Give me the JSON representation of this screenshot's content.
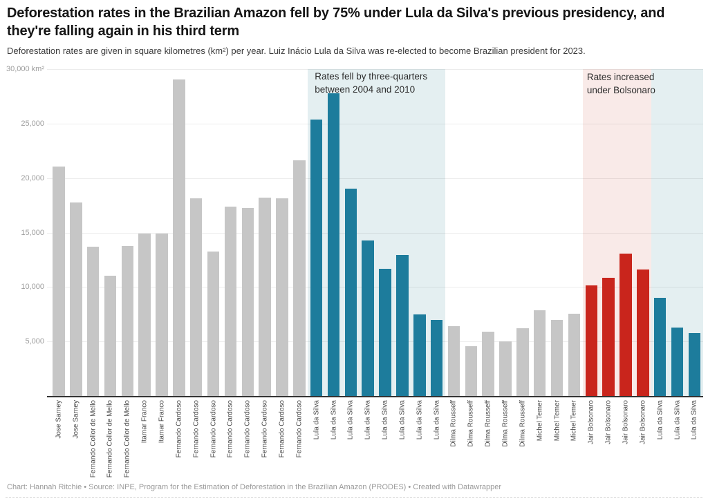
{
  "header": {
    "title": "Deforestation rates in the Brazilian Amazon fell by 75% under Lula da Silva's previous presidency, and they're falling again in his third term",
    "subtitle": "Deforestation rates are given in square kilometres (km²) per year. Luiz Inácio Lula da Silva was re-elected to become Brazilian president for 2023."
  },
  "footer": {
    "credit": "Chart: Hannah Ritchie • Source: INPE, Program for the Estimation of Deforestation in the Brazilian Amazon (PRODES) • Created with Datawrapper"
  },
  "chart_data": {
    "type": "bar",
    "title": "Deforestation rates in the Brazilian Amazon",
    "ylabel": "square kilometres (km²) per year",
    "ylim": [
      0,
      30000
    ],
    "grid": true,
    "y_axis": {
      "ticks": [
        {
          "value": 30000,
          "label": "30,000 km²"
        },
        {
          "value": 25000,
          "label": "25,000"
        },
        {
          "value": 20000,
          "label": "20,000"
        },
        {
          "value": 15000,
          "label": "15,000"
        },
        {
          "value": 10000,
          "label": "10,000"
        },
        {
          "value": 5000,
          "label": "5,000"
        }
      ]
    },
    "categories": [
      "Jose Sarney",
      "Jose Sarney",
      "Fernando Collor de Mello",
      "Fernando Collor de Mello",
      "Fernando Collor de Mello",
      "Itamar Franco",
      "Itamar Franco",
      "Fernando Cardoso",
      "Fernando Cardoso",
      "Fernando Cardoso",
      "Fernando Cardoso",
      "Fernando Cardoso",
      "Fernando Cardoso",
      "Fernando Cardoso",
      "Fernando Cardoso",
      "Lula da Silva",
      "Lula da Silva",
      "Lula da Silva",
      "Lula da Silva",
      "Lula da Silva",
      "Lula da Silva",
      "Lula da Silva",
      "Lula da Silva",
      "Dilma Rousseff",
      "Dilma Rousseff",
      "Dilma Rousseff",
      "Dilma Rousseff",
      "Dilma Rousseff",
      "Michel Temer",
      "Michel Temer",
      "Michel Temer",
      "Jair Bolsonaro",
      "Jair Bolsonaro",
      "Jair Bolsonaro",
      "Jair Bolsonaro",
      "Lula da Silva",
      "Lula da Silva",
      "Lula da Silva"
    ],
    "values": [
      21050,
      17770,
      13730,
      11030,
      13786,
      14896,
      14896,
      29059,
      18161,
      13227,
      17383,
      17259,
      18226,
      18165,
      21651,
      25396,
      27772,
      19014,
      14286,
      11651,
      12911,
      7464,
      7000,
      6418,
      4571,
      5891,
      5012,
      6207,
      7893,
      6947,
      7536,
      10129,
      10851,
      13038,
      11594,
      9001,
      6288,
      5796
    ],
    "bar_colors": [
      "gray",
      "gray",
      "gray",
      "gray",
      "gray",
      "gray",
      "gray",
      "gray",
      "gray",
      "gray",
      "gray",
      "gray",
      "gray",
      "gray",
      "gray",
      "blue",
      "blue",
      "blue",
      "blue",
      "blue",
      "blue",
      "blue",
      "blue",
      "gray",
      "gray",
      "gray",
      "gray",
      "gray",
      "gray",
      "gray",
      "gray",
      "red",
      "red",
      "red",
      "red",
      "blue",
      "blue",
      "blue"
    ],
    "colors": {
      "gray": "#c6c6c6",
      "blue": "#1d7c9c",
      "red": "#c9251c",
      "region_blue": "#e4eff1",
      "region_pink": "#f9eae8"
    },
    "regions": [
      {
        "name": "highlight-region-lula-previous",
        "start": 15,
        "end": 23,
        "color": "region_blue"
      },
      {
        "name": "highlight-region-bolsonaro",
        "start": 31,
        "end": 35,
        "color": "region_pink"
      },
      {
        "name": "highlight-region-lula-third-term",
        "start": 35,
        "end": 38,
        "color": "region_blue"
      }
    ],
    "annotations": [
      {
        "text": "Rates fell by three-quarters\nbetween 2004 and 2010",
        "region_index": 0
      },
      {
        "text": "Rates increased\nunder Bolsonaro",
        "region_index": 1
      }
    ],
    "legend_position": "none"
  }
}
